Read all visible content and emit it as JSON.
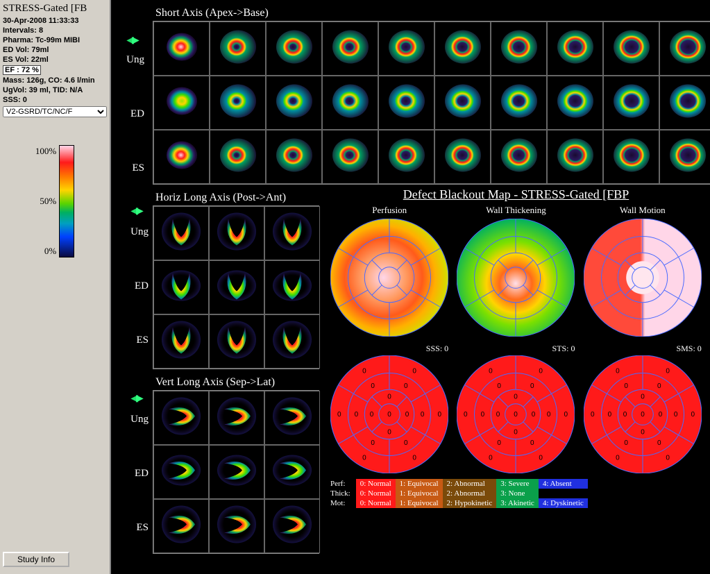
{
  "sidebar": {
    "title": "STRESS-Gated [FB",
    "datetime": "30-Apr-2008 11:33:33",
    "intervals": "Intervals: 8",
    "pharma": "Pharma: Tc-99m MIBI",
    "edvol": "ED Vol:   79ml",
    "esvol": "ES Vol:   22ml",
    "ef": "EF  : 72 %",
    "mass": "Mass: 126g, CO: 4.6 l/min",
    "ugvol": "UgVol:   39 ml,   TID: N/A",
    "sss": "SSS: 0",
    "dropdown": "V2-GSRD/TC/NC/F",
    "colorbar": {
      "l100": "100%",
      "l50": "50%",
      "l0": "0%"
    },
    "study_btn": "Study Info"
  },
  "short_axis": {
    "title": "Short Axis (Apex->Base)",
    "rows": [
      "Ung",
      "ED",
      "ES"
    ]
  },
  "hla": {
    "title": "Horiz Long Axis (Post->Ant)",
    "rows": [
      "Ung",
      "ED",
      "ES"
    ]
  },
  "vla": {
    "title": "Vert Long Axis (Sep->Lat)",
    "rows": [
      "Ung",
      "ED",
      "ES"
    ]
  },
  "defect": {
    "title": "Defect Blackout Map - STRESS-Gated [FBP",
    "labels": [
      "Perfusion",
      "Wall Thickening",
      "Wall Motion"
    ],
    "scores": [
      "SSS: 0",
      "STS: 0",
      "SMS: 0"
    ]
  },
  "legend": {
    "rows": [
      {
        "hdr": "Perf:",
        "c": [
          [
            "0: Normal",
            "#ff1a1a"
          ],
          [
            "1: Equivocal",
            "#c75a14"
          ],
          [
            "2: Abnormal",
            "#7a4a0a"
          ],
          [
            "3: Severe",
            "#0aa04a"
          ],
          [
            "4: Absent",
            "#2030e0"
          ]
        ]
      },
      {
        "hdr": "Thick:",
        "c": [
          [
            "0: Normal",
            "#ff1a1a"
          ],
          [
            "1: Equivocal",
            "#c75a14"
          ],
          [
            "2: Abnormal",
            "#7a4a0a"
          ],
          [
            "3: None",
            "#0aa04a"
          ],
          [
            "",
            ""
          ]
        ]
      },
      {
        "hdr": "Mot:",
        "c": [
          [
            "0: Normal",
            "#ff1a1a"
          ],
          [
            "1: Equivocal",
            "#c75a14"
          ],
          [
            "2: Hypokinetic",
            "#7a4a0a"
          ],
          [
            "3: Akinetic",
            "#0aa04a"
          ],
          [
            "4: Dyskinetic",
            "#2030e0"
          ]
        ]
      }
    ]
  },
  "blob_palettes": {
    "ring_hot": [
      "#1a0a30",
      "#2a1a60",
      "#1a40c0",
      "#00a060",
      "#a0e000",
      "#ffd400",
      "#ff6a00",
      "#ff1a1a",
      "#ffd6e8"
    ],
    "ring_green": [
      "#1a0a30",
      "#2a1a60",
      "#1a40c0",
      "#0090a0",
      "#00c060",
      "#40e000",
      "#d0f000",
      "#ffd400",
      "#a0e000"
    ],
    "u_hot": [
      "#1a0a30",
      "#2a1a60",
      "#1a40c0",
      "#00a060",
      "#a0e000",
      "#ffd400",
      "#ff6a00",
      "#ff1a1a",
      "#ffd6e8"
    ]
  },
  "polar_colors": {
    "perfusion": {
      "type": "radial",
      "stops": [
        [
          "#ffd6e8",
          "0%"
        ],
        [
          "#ff9a60",
          "35%"
        ],
        [
          "#ff5a1a",
          "60%"
        ],
        [
          "#ffb000",
          "80%"
        ],
        [
          "#d0e000",
          "100%"
        ]
      ]
    },
    "thickening": {
      "type": "radial",
      "stops": [
        [
          "#ffe0ea",
          "0%"
        ],
        [
          "#ff6a1a",
          "25%"
        ],
        [
          "#ffd400",
          "45%"
        ],
        [
          "#7ae000",
          "65%"
        ],
        [
          "#00b060",
          "100%"
        ]
      ]
    },
    "motion": {
      "type": "split",
      "left": "#ff4a3a",
      "right": "#ffd6e8",
      "center": "#ffe6ee"
    }
  },
  "score_value": "0",
  "seg_grid_color": "#4a6aff",
  "seg_fill": "#ff1a1a"
}
